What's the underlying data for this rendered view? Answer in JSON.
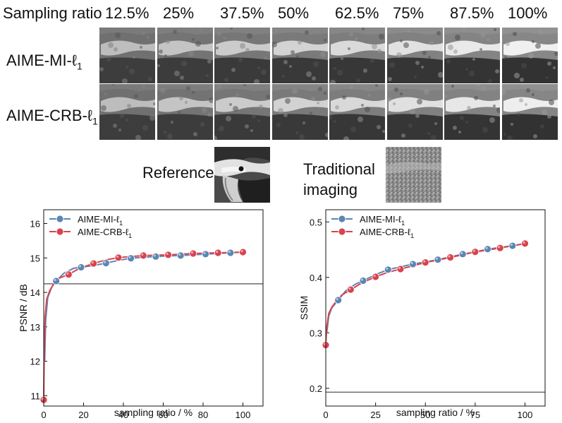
{
  "header": {
    "label": "Sampling ratio",
    "ratios": [
      "12.5%",
      "25%",
      "37.5%",
      "50%",
      "62.5%",
      "75%",
      "87.5%",
      "100%"
    ]
  },
  "rows": [
    {
      "label": "AIME-MI-ℓ",
      "sub": "1"
    },
    {
      "label": "AIME-CRB-ℓ",
      "sub": "1"
    }
  ],
  "reference": {
    "label": "Reference"
  },
  "traditional": {
    "line1": "Traditional",
    "line2": "imaging"
  },
  "colors": {
    "mi": "#5b86b4",
    "crb": "#d9434f",
    "baseline": "#6b6b6b"
  },
  "chart_data": [
    {
      "type": "line",
      "xlabel": "sampling ratio / %",
      "ylabel": "PSNR / dB",
      "xlim": [
        0,
        100
      ],
      "ylim": [
        10.7,
        16.4
      ],
      "xticks": [
        0,
        20,
        40,
        60,
        80,
        100
      ],
      "yticks": [
        11,
        12,
        13,
        14,
        15,
        16
      ],
      "legend": "top-left",
      "baseline": 14.25,
      "series": [
        {
          "name": "AIME-MI-ℓ",
          "sub": "1",
          "color": "#5b86b4",
          "x": [
            6.25,
            18.75,
            31.25,
            43.75,
            56.25,
            68.75,
            81.25,
            93.75
          ],
          "y": [
            14.33,
            14.73,
            14.85,
            14.99,
            15.04,
            15.07,
            15.11,
            15.15
          ],
          "curve_x": [
            0.5,
            1,
            2,
            4,
            6.25,
            10,
            15,
            18.75,
            25,
            31.25,
            37.5,
            43.75,
            50,
            56.25,
            62.5,
            68.75,
            75,
            81.25,
            87.5,
            93.75,
            100
          ],
          "curve_y": [
            12.0,
            13.2,
            13.85,
            14.15,
            14.33,
            14.55,
            14.7,
            14.73,
            14.78,
            14.85,
            14.93,
            14.99,
            15.02,
            15.04,
            15.06,
            15.07,
            15.09,
            15.11,
            15.13,
            15.15,
            15.17
          ]
        },
        {
          "name": "AIME-CRB-ℓ",
          "sub": "1",
          "color": "#d9434f",
          "x": [
            0,
            12.5,
            25,
            37.5,
            50,
            62.5,
            75,
            87.5,
            100
          ],
          "y": [
            10.88,
            14.52,
            14.84,
            15.01,
            15.07,
            15.09,
            15.13,
            15.15,
            15.17
          ],
          "curve_x": [
            0,
            0.3,
            0.7,
            1.5,
            3,
            5,
            8,
            12.5,
            18,
            25,
            31,
            37.5,
            44,
            50,
            56,
            62.5,
            69,
            75,
            81,
            87.5,
            94,
            100
          ],
          "curve_y": [
            10.88,
            12.4,
            13.3,
            13.8,
            14.05,
            14.25,
            14.42,
            14.52,
            14.7,
            14.84,
            14.94,
            15.01,
            15.04,
            15.07,
            15.08,
            15.09,
            15.11,
            15.13,
            15.14,
            15.15,
            15.16,
            15.17
          ]
        }
      ]
    },
    {
      "type": "line",
      "xlabel": "sampling ratio / %",
      "ylabel": "SSIM",
      "xlim": [
        0,
        100
      ],
      "ylim": [
        0.168,
        0.522
      ],
      "xticks": [
        0,
        25,
        50,
        75,
        100
      ],
      "yticks": [
        0.2,
        0.3,
        0.4,
        0.5
      ],
      "legend": "top-left",
      "baseline": 0.193,
      "series": [
        {
          "name": "AIME-MI-ℓ",
          "sub": "1",
          "color": "#5b86b4",
          "x": [
            6.25,
            18.75,
            31.25,
            43.75,
            56.25,
            68.75,
            81.25,
            93.75
          ],
          "y": [
            0.359,
            0.394,
            0.414,
            0.424,
            0.432,
            0.442,
            0.451,
            0.457
          ],
          "curve_x": [
            0.5,
            1.5,
            3,
            6.25,
            10,
            15,
            18.75,
            25,
            31.25,
            37.5,
            43.75,
            50,
            56.25,
            62.5,
            68.75,
            75,
            81.25,
            87.5,
            93.75,
            100
          ],
          "curve_y": [
            0.3,
            0.33,
            0.345,
            0.359,
            0.376,
            0.388,
            0.394,
            0.405,
            0.414,
            0.419,
            0.424,
            0.428,
            0.432,
            0.437,
            0.442,
            0.446,
            0.451,
            0.454,
            0.457,
            0.461
          ]
        },
        {
          "name": "AIME-CRB-ℓ",
          "sub": "1",
          "color": "#d9434f",
          "x": [
            0,
            12.5,
            25,
            37.5,
            50,
            62.5,
            75,
            87.5,
            100
          ],
          "y": [
            0.278,
            0.378,
            0.401,
            0.415,
            0.427,
            0.436,
            0.446,
            0.453,
            0.461
          ],
          "curve_x": [
            0,
            0.5,
            1.5,
            3,
            5,
            8,
            12.5,
            18,
            25,
            31,
            37.5,
            44,
            50,
            56,
            62.5,
            69,
            75,
            81,
            87.5,
            94,
            100
          ],
          "curve_y": [
            0.278,
            0.31,
            0.335,
            0.346,
            0.356,
            0.368,
            0.378,
            0.39,
            0.401,
            0.409,
            0.415,
            0.421,
            0.427,
            0.431,
            0.436,
            0.441,
            0.446,
            0.449,
            0.453,
            0.457,
            0.461
          ]
        }
      ]
    }
  ]
}
